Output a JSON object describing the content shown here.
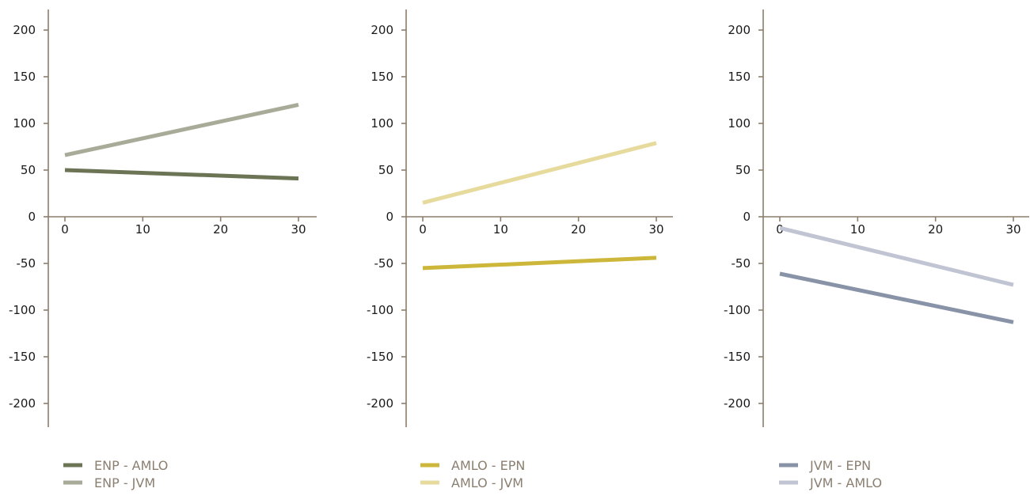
{
  "colors": {
    "axis": "#8b7d6b",
    "tick_text": "#1a1a1a",
    "legend_text": "#8a7f70"
  },
  "chart_data": [
    {
      "type": "line",
      "xlim": [
        0,
        30
      ],
      "ylim": [
        -200,
        200
      ],
      "x_ticks": [
        0,
        10,
        20,
        30
      ],
      "y_ticks": [
        200,
        150,
        100,
        50,
        0,
        -50,
        -100,
        -150,
        -200
      ],
      "grid": false,
      "legend_placement": "bottom-left",
      "series": [
        {
          "name": "ENP - AMLO",
          "color": "#6b7556",
          "x": [
            0,
            30
          ],
          "y": [
            50,
            41
          ]
        },
        {
          "name": "ENP - JVM",
          "color": "#a9ab99",
          "x": [
            0,
            30
          ],
          "y": [
            66,
            120
          ]
        }
      ]
    },
    {
      "type": "line",
      "xlim": [
        0,
        30
      ],
      "ylim": [
        -200,
        200
      ],
      "x_ticks": [
        0,
        10,
        20,
        30
      ],
      "y_ticks": [
        200,
        150,
        100,
        50,
        0,
        -50,
        -100,
        -150,
        -200
      ],
      "grid": false,
      "legend_placement": "bottom-left",
      "series": [
        {
          "name": "AMLO - EPN",
          "color": "#cdb73a",
          "x": [
            0,
            30
          ],
          "y": [
            -55,
            -44
          ]
        },
        {
          "name": "AMLO - JVM",
          "color": "#e6da9c",
          "x": [
            0,
            30
          ],
          "y": [
            15,
            79
          ]
        }
      ]
    },
    {
      "type": "line",
      "xlim": [
        0,
        30
      ],
      "ylim": [
        -200,
        200
      ],
      "x_ticks": [
        0,
        10,
        20,
        30
      ],
      "y_ticks": [
        200,
        150,
        100,
        50,
        0,
        -50,
        -100,
        -150,
        -200
      ],
      "grid": false,
      "legend_placement": "bottom-left",
      "series": [
        {
          "name": "JVM - EPN",
          "color": "#8893a8",
          "x": [
            0,
            30
          ],
          "y": [
            -61,
            -113
          ]
        },
        {
          "name": "JVM - AMLO",
          "color": "#c1c5d3",
          "x": [
            0,
            30
          ],
          "y": [
            -12,
            -73
          ]
        }
      ]
    }
  ]
}
